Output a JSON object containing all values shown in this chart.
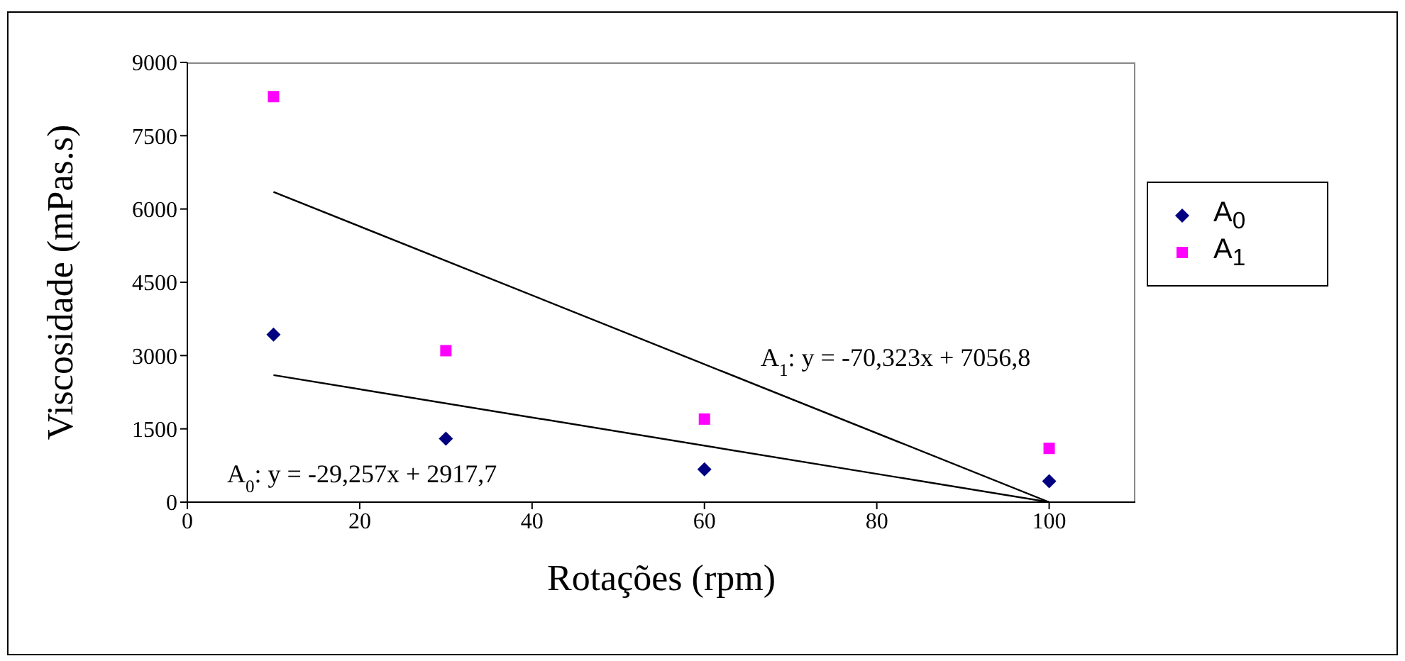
{
  "chart_data": {
    "type": "scatter",
    "xlabel": "Rotações (rpm)",
    "ylabel": "Viscosidade (mPas.s)",
    "xlim": [
      0,
      110
    ],
    "xticks": [
      0,
      20,
      40,
      60,
      80,
      100
    ],
    "ylim": [
      0,
      9000
    ],
    "yticks": [
      0,
      1500,
      3000,
      4500,
      6000,
      7500,
      9000
    ],
    "grid": false,
    "legend": "right",
    "series": [
      {
        "name": "A$_{0}$",
        "marker": "diamond",
        "color": "#000080",
        "x": [
          10,
          30,
          60,
          100
        ],
        "values": [
          3430,
          1300,
          670,
          430
        ]
      },
      {
        "name": "A$_{1}$",
        "marker": "square",
        "color": "#ff00ff",
        "x": [
          10,
          30,
          60,
          100
        ],
        "values": [
          8300,
          3100,
          1700,
          1100
        ]
      },
      {
        "type": "line",
        "marker": "none",
        "color": "#000000",
        "x": [
          10,
          100
        ],
        "values": [
          2600,
          0
        ]
      },
      {
        "type": "line",
        "marker": "none",
        "color": "#000000",
        "x": [
          10,
          100
        ],
        "values": [
          6350,
          0
        ]
      }
    ],
    "annotations": [
      "A$_{0}$: y = -29,257x + 2917,7",
      "A$_{1}$: y = -70,323x + 7056,8"
    ]
  }
}
